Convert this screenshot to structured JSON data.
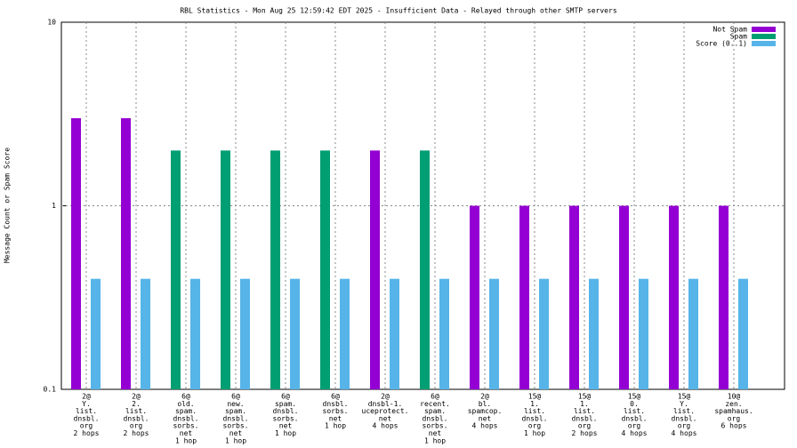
{
  "chart_data": {
    "type": "bar",
    "title": "RBL Statistics - Mon Aug 25 12:59:42 EDT 2025 - Insufficient Data - Relayed through other SMTP servers",
    "y_label": "Message Count or Spam Score",
    "log_scale": true,
    "grid": true,
    "legend": "top-right",
    "ylim": [
      0.1,
      10
    ],
    "yticks": [
      0.1,
      1,
      10
    ],
    "categories": [
      [
        "2@",
        "Y.",
        "list.",
        "dnsbl.",
        "org",
        "2 hops"
      ],
      [
        "2@",
        "2.",
        "list.",
        "dnsbl.",
        "org",
        "2 hops"
      ],
      [
        "6@",
        "old.",
        "spam.",
        "dnsbl.",
        "sorbs.",
        "net",
        "1 hop"
      ],
      [
        "6@",
        "new.",
        "spam.",
        "dnsbl.",
        "sorbs.",
        "net",
        "1 hop"
      ],
      [
        "6@",
        "spam.",
        "dnsbl.",
        "sorbs.",
        "net",
        "1 hop"
      ],
      [
        "6@",
        "dnsbl.",
        "sorbs.",
        "net",
        "1 hop"
      ],
      [
        "2@",
        "dnsbl-1.",
        "uceprotect.",
        "net",
        "4 hops"
      ],
      [
        "6@",
        "recent.",
        "spam.",
        "dnsbl.",
        "sorbs.",
        "net",
        "1 hop"
      ],
      [
        "2@",
        "bl.",
        "spamcop.",
        "net",
        "4 hops"
      ],
      [
        "15@",
        "1.",
        "list.",
        "dnsbl.",
        "org",
        "1 hop"
      ],
      [
        "15@",
        "1.",
        "list.",
        "dnsbl.",
        "org",
        "2 hops"
      ],
      [
        "15@",
        "0.",
        "list.",
        "dnsbl.",
        "org",
        "4 hops"
      ],
      [
        "15@",
        "Y.",
        "list.",
        "dnsbl.",
        "org",
        "4 hops"
      ],
      [
        "10@",
        "zen.",
        "spamhaus.",
        "org",
        "6 hops"
      ]
    ],
    "series": [
      {
        "name": "Not Spam",
        "color": "#9400d3",
        "values": [
          3,
          3,
          null,
          null,
          null,
          null,
          2,
          null,
          1,
          1,
          1,
          1,
          1,
          1
        ]
      },
      {
        "name": "Spam",
        "color": "#009e73",
        "values": [
          null,
          null,
          2,
          2,
          2,
          2,
          null,
          2,
          null,
          null,
          null,
          null,
          null,
          null
        ]
      },
      {
        "name": "Score (0..1)",
        "color": "#56b4e9",
        "values": [
          0.4,
          0.4,
          0.4,
          0.4,
          0.4,
          0.4,
          0.4,
          0.4,
          0.4,
          0.4,
          0.4,
          0.4,
          0.4,
          0.4
        ]
      }
    ]
  }
}
